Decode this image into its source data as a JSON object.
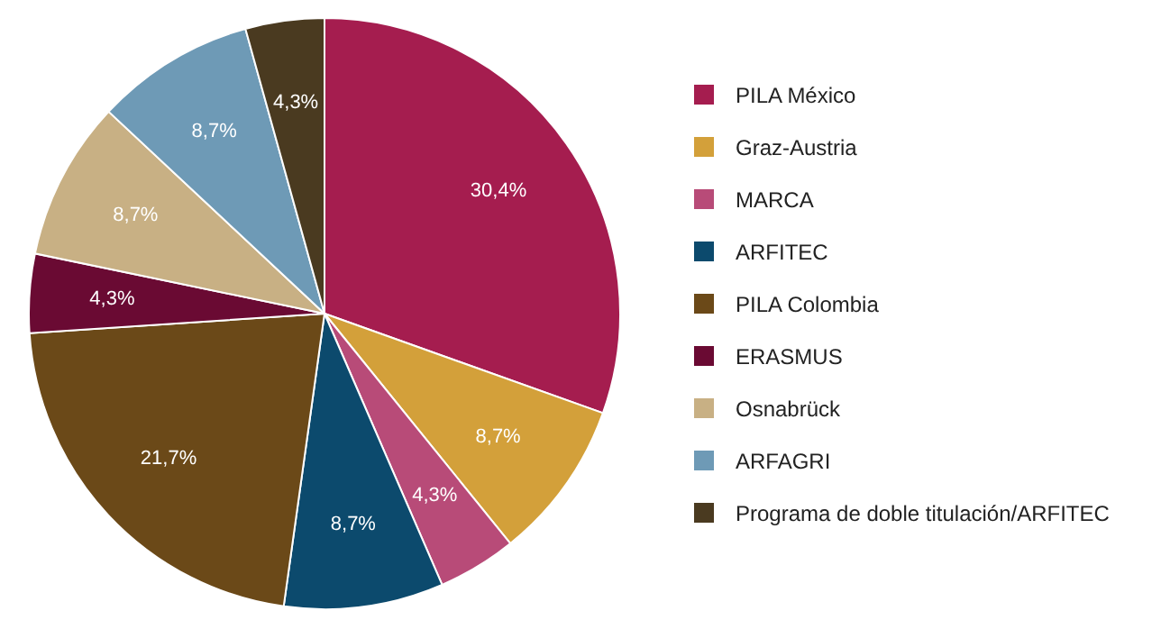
{
  "chart_data": {
    "type": "pie",
    "categories": [
      "PILA México",
      "Graz-Austria",
      "MARCA",
      "ARFITEC",
      "PILA Colombia",
      "ERASMUS",
      "Osnabrück",
      "ARFAGRI",
      "Programa de doble titulación/ARFITEC"
    ],
    "values": [
      30.4,
      8.7,
      4.3,
      8.7,
      21.7,
      4.3,
      8.7,
      8.7,
      4.3
    ],
    "value_labels": [
      "30,4%",
      "8,7%",
      "4,3%",
      "8,7%",
      "21,7%",
      "4,3%",
      "8,7%",
      "8,7%",
      "4,3%"
    ],
    "colors": [
      "#a51d4f",
      "#d3a03a",
      "#b84b78",
      "#0c4a6d",
      "#6b4918",
      "#6a0a33",
      "#c8b084",
      "#6e9ab6",
      "#4a3a20"
    ],
    "legend": "right"
  }
}
